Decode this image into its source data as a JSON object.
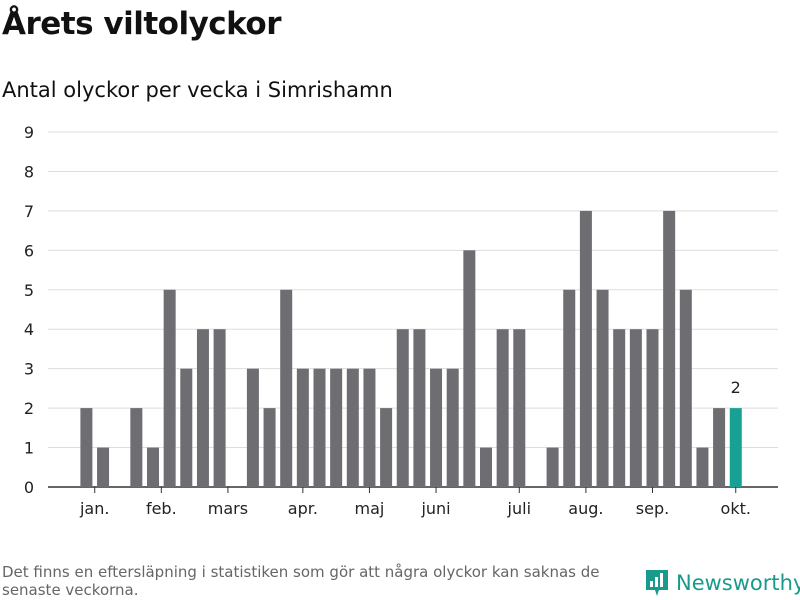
{
  "title": "Årets viltolyckor",
  "subtitle": "Antal olyckor per vecka i Simrishamn",
  "footnote": "Det finns en eftersläpning i statistiken som gör att några olyckor kan saknas de senaste veckorna.",
  "brand": {
    "name": "Newsworthy",
    "icon": "newsworthy-logo-icon"
  },
  "colors": {
    "bar": "#6e6d72",
    "highlight": "#17a194",
    "grid": "#dddddd",
    "axis": "#333333"
  },
  "chart_data": {
    "type": "bar",
    "x": [
      1,
      2,
      3,
      4,
      5,
      6,
      7,
      8,
      9,
      10,
      11,
      12,
      13,
      14,
      15,
      16,
      17,
      18,
      19,
      20,
      21,
      22,
      23,
      24,
      25,
      26,
      27,
      28,
      29,
      30,
      31,
      32,
      33,
      34,
      35,
      36,
      37,
      38,
      39,
      40
    ],
    "values": [
      2,
      1,
      0,
      2,
      1,
      5,
      3,
      4,
      4,
      0,
      3,
      2,
      5,
      3,
      3,
      3,
      3,
      3,
      2,
      4,
      4,
      3,
      3,
      6,
      1,
      4,
      4,
      0,
      1,
      5,
      7,
      5,
      4,
      4,
      4,
      7,
      5,
      1,
      2,
      2
    ],
    "highlight_index": 39,
    "highlight_label": "2",
    "ylim": [
      0,
      9
    ],
    "yticks": [
      "0",
      "1",
      "2",
      "3",
      "4",
      "5",
      "6",
      "7",
      "8",
      "9"
    ],
    "xticks": [
      {
        "label": "jan.",
        "x": 1.5
      },
      {
        "label": "feb.",
        "x": 5.5
      },
      {
        "label": "mars",
        "x": 9.5
      },
      {
        "label": "apr.",
        "x": 14
      },
      {
        "label": "maj",
        "x": 18
      },
      {
        "label": "juni",
        "x": 22
      },
      {
        "label": "juli",
        "x": 27
      },
      {
        "label": "aug.",
        "x": 31
      },
      {
        "label": "sep.",
        "x": 35
      },
      {
        "label": "okt.",
        "x": 40
      }
    ],
    "grid": true
  }
}
